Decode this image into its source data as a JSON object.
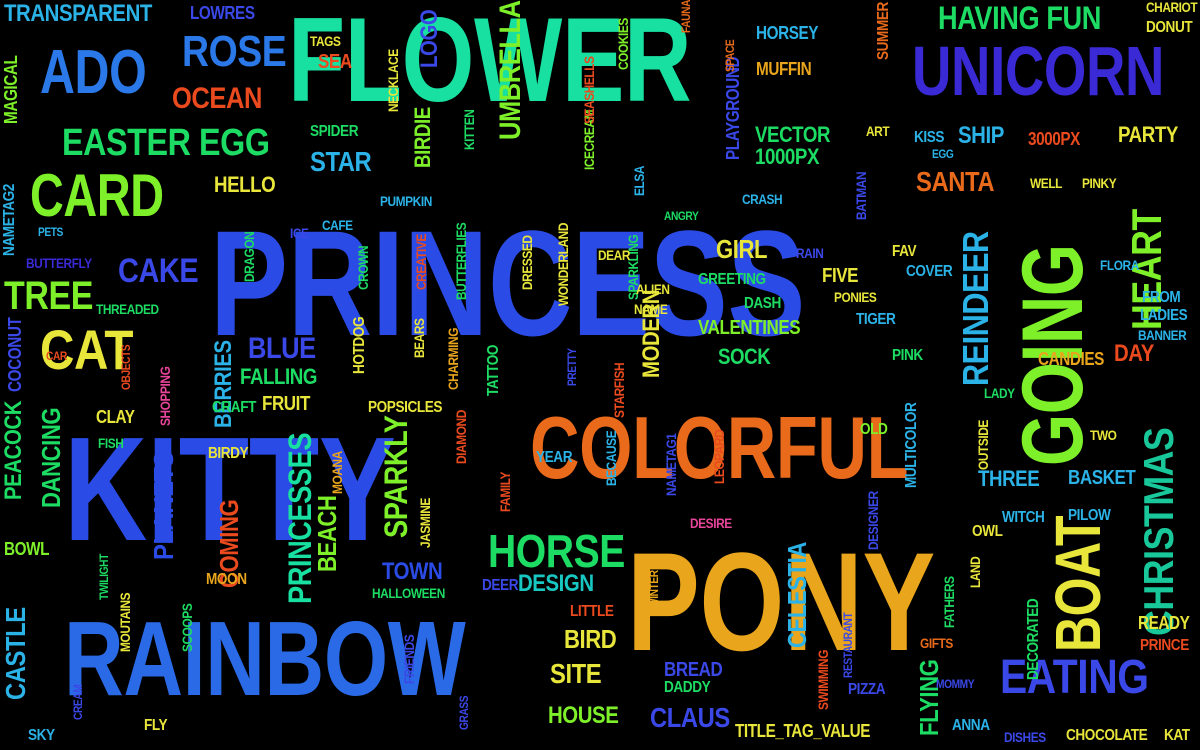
{
  "palette": {
    "blue": "#1f3fdd",
    "green": "#1ddc63",
    "aqua": "#18e0a0",
    "lime": "#7ef02a",
    "yellow": "#e8e63a",
    "orange": "#e8901a",
    "red": "#ea4a1e",
    "cyan": "#2bb3e8",
    "purple": "#4a2bd0",
    "pink": "#e8449a",
    "royal": "#3b48e8",
    "teal": "#18c7c2",
    "amber": "#e9a51c"
  },
  "words": [
    {
      "text": "FLOWER",
      "color": "#18e0a0"
    },
    {
      "text": "PRINCESS",
      "color": "#2a4be6"
    },
    {
      "text": "KITTY",
      "color": "#2a4be6"
    },
    {
      "text": "PONY",
      "color": "#e9a51c"
    },
    {
      "text": "RAINBOW",
      "color": "#2a6ae6"
    },
    {
      "text": "COLORFUL",
      "color": "#e86a1a"
    },
    {
      "text": "GOING",
      "color": "#7ef02a"
    },
    {
      "text": "UNICORN",
      "color": "#3a2ad6"
    },
    {
      "text": "BOAT",
      "color": "#e8e63a"
    },
    {
      "text": "CARD",
      "color": "#7ef02a"
    },
    {
      "text": "ADO",
      "color": "#2b79e8"
    },
    {
      "text": "CAT",
      "color": "#e8e63a"
    },
    {
      "text": "ROSE",
      "color": "#2b79e8"
    },
    {
      "text": "HORSE",
      "color": "#1ddc63"
    },
    {
      "text": "CHRISTMAS",
      "color": "#18c79a"
    },
    {
      "text": "HEART",
      "color": "#7ef02a"
    },
    {
      "text": "EATING",
      "color": "#3b48e8"
    },
    {
      "text": "REINDEER",
      "color": "#2bb3e8"
    },
    {
      "text": "EASTER EGG",
      "color": "#1ddc63"
    },
    {
      "text": "TREE",
      "color": "#7ef02a"
    },
    {
      "text": "CAKE",
      "color": "#3b48e8"
    },
    {
      "text": "OCEAN",
      "color": "#ea4a1e"
    },
    {
      "text": "HAVING FUN",
      "color": "#1ddc63"
    },
    {
      "text": "UMBRELLA",
      "color": "#7ef02a"
    },
    {
      "text": "TRANSPARENT",
      "color": "#2bb3e8"
    },
    {
      "text": "LOWRES",
      "color": "#3b48e8"
    },
    {
      "text": "MAGICAL",
      "color": "#7ef02a"
    },
    {
      "text": "NAMETAG2",
      "color": "#2bb3e8"
    },
    {
      "text": "BIRDIE",
      "color": "#7ef02a"
    },
    {
      "text": "LOGO",
      "color": "#3b48e8"
    },
    {
      "text": "SANTA",
      "color": "#e86a1a"
    },
    {
      "text": "PARTY",
      "color": "#e8e63a"
    },
    {
      "text": "SHIP",
      "color": "#2bb3e8"
    },
    {
      "text": "STAR",
      "color": "#2bb3e8"
    },
    {
      "text": "HELLO",
      "color": "#e8e63a"
    },
    {
      "text": "VECTOR",
      "color": "#1ddc63"
    },
    {
      "text": "1000PX",
      "color": "#1ddc63"
    },
    {
      "text": "3000PX",
      "color": "#ea4a1e"
    },
    {
      "text": "MUFFIN",
      "color": "#e9a51c"
    },
    {
      "text": "HORSEY",
      "color": "#2bb3e8"
    },
    {
      "text": "GIRL",
      "color": "#e8e63a"
    },
    {
      "text": "VALENTINES",
      "color": "#7ef02a"
    },
    {
      "text": "BLUE",
      "color": "#3b48e8"
    },
    {
      "text": "FALLING",
      "color": "#1ddc63"
    },
    {
      "text": "FRUIT",
      "color": "#e8e63a"
    },
    {
      "text": "BERRIES",
      "color": "#2bb3e8"
    },
    {
      "text": "CASTLE",
      "color": "#2bb3e8"
    },
    {
      "text": "PEACOCK",
      "color": "#1ddc63"
    },
    {
      "text": "DANCING",
      "color": "#1ddc63"
    },
    {
      "text": "COCONUT",
      "color": "#3b48e8"
    },
    {
      "text": "PRINCESSES",
      "color": "#18e0a0"
    },
    {
      "text": "BEACH",
      "color": "#7ef02a"
    },
    {
      "text": "SPARKLY",
      "color": "#7ef02a"
    },
    {
      "text": "PLANETS",
      "color": "#2a4be6"
    },
    {
      "text": "COMING",
      "color": "#ea4a1e"
    },
    {
      "text": "TOWN",
      "color": "#2a4be6"
    },
    {
      "text": "DESIGN",
      "color": "#18c7c2"
    },
    {
      "text": "SITE",
      "color": "#e8e63a"
    },
    {
      "text": "HOUSE",
      "color": "#7ef02a"
    },
    {
      "text": "BIRD",
      "color": "#e8e63a"
    },
    {
      "text": "CLAUS",
      "color": "#3b48e8"
    },
    {
      "text": "BREAD",
      "color": "#3b48e8"
    },
    {
      "text": "CELESTIA",
      "color": "#2bb3e8"
    },
    {
      "text": "FLYING",
      "color": "#1ddc63"
    },
    {
      "text": "THREE",
      "color": "#2bb3e8"
    },
    {
      "text": "BASKET",
      "color": "#2bb3e8"
    },
    {
      "text": "MODERN",
      "color": "#e8e63a"
    },
    {
      "text": "CANDIES",
      "color": "#e9a51c"
    },
    {
      "text": "DAY",
      "color": "#ea4a1e"
    },
    {
      "text": "YEAR",
      "color": "#2bb3e8"
    },
    {
      "text": "SOCK",
      "color": "#1ddc63"
    },
    {
      "text": "FIVE",
      "color": "#e8e63a"
    },
    {
      "text": "TIGER",
      "color": "#2bb3e8"
    },
    {
      "text": "ICECREAM",
      "color": "#7ef02a"
    },
    {
      "text": "PLAYGROUND",
      "color": "#3b48e8"
    },
    {
      "text": "BOWL",
      "color": "#7ef02a"
    },
    {
      "text": "SHOPPING",
      "color": "#e8449a"
    },
    {
      "text": "HOTDOG",
      "color": "#e8e63a"
    },
    {
      "text": "POPSICLES",
      "color": "#e8e63a"
    },
    {
      "text": "CRAFT",
      "color": "#1ddc63"
    },
    {
      "text": "CLAY",
      "color": "#e8e63a"
    },
    {
      "text": "FISH",
      "color": "#1ddc63"
    },
    {
      "text": "CROWN",
      "color": "#1ddc63"
    },
    {
      "text": "DRAGON",
      "color": "#1ddc63"
    },
    {
      "text": "THREADED",
      "color": "#1ddc63"
    },
    {
      "text": "BUTTERFLY",
      "color": "#3a2ad6"
    },
    {
      "text": "PETS",
      "color": "#2bb3e8"
    },
    {
      "text": "ICE",
      "color": "#3b48e8"
    },
    {
      "text": "CAFE",
      "color": "#2bb3e8"
    },
    {
      "text": "PUMPKIN",
      "color": "#2bb3e8"
    },
    {
      "text": "CREATIVE",
      "color": "#ea4a1e"
    },
    {
      "text": "BUTTERFLIES",
      "color": "#1ddc63"
    },
    {
      "text": "DRESSED",
      "color": "#e8e63a"
    },
    {
      "text": "WONDERLAND",
      "color": "#e8e63a"
    },
    {
      "text": "SPARKLING",
      "color": "#1ddc63"
    },
    {
      "text": "ELSA",
      "color": "#2bb3e8"
    },
    {
      "text": "ANGRY",
      "color": "#1ddc63"
    },
    {
      "text": "CRASH",
      "color": "#2bb3e8"
    },
    {
      "text": "BATMAN",
      "color": "#3b48e8"
    },
    {
      "text": "RAIN",
      "color": "#3b48e8"
    },
    {
      "text": "FAV",
      "color": "#e8e63a"
    },
    {
      "text": "COVER",
      "color": "#2bb3e8"
    },
    {
      "text": "PONIES",
      "color": "#e8e63a"
    },
    {
      "text": "GREETING",
      "color": "#1ddc63"
    },
    {
      "text": "DASH",
      "color": "#1ddc63"
    },
    {
      "text": "ALIEN",
      "color": "#e8e63a"
    },
    {
      "text": "NAME",
      "color": "#e8e63a"
    },
    {
      "text": "DEAR",
      "color": "#e8e63a"
    },
    {
      "text": "PINK",
      "color": "#1ddc63"
    },
    {
      "text": "LADY",
      "color": "#1ddc63"
    },
    {
      "text": "OLD",
      "color": "#7ef02a"
    },
    {
      "text": "MULTICOLOR",
      "color": "#2bb3e8"
    },
    {
      "text": "OUTSIDE",
      "color": "#e8e63a"
    },
    {
      "text": "DESIGNER",
      "color": "#3b48e8"
    },
    {
      "text": "OWL",
      "color": "#e8e63a"
    },
    {
      "text": "WITCH",
      "color": "#2bb3e8"
    },
    {
      "text": "PILOW",
      "color": "#2bb3e8"
    },
    {
      "text": "TWO",
      "color": "#e8e63a"
    },
    {
      "text": "FROM",
      "color": "#2bb3e8"
    },
    {
      "text": "LADIES",
      "color": "#2bb3e8"
    },
    {
      "text": "BANNER",
      "color": "#2bb3e8"
    },
    {
      "text": "FLORA",
      "color": "#2bb3e8"
    },
    {
      "text": "WELL",
      "color": "#e8e63a"
    },
    {
      "text": "PINKY",
      "color": "#e8e63a"
    },
    {
      "text": "CHARIOT",
      "color": "#e8e63a"
    },
    {
      "text": "DONUT",
      "color": "#e8e63a"
    },
    {
      "text": "KISS",
      "color": "#2bb3e8"
    },
    {
      "text": "EGG",
      "color": "#2bb3e8"
    },
    {
      "text": "ART",
      "color": "#e8e63a"
    },
    {
      "text": "SUMMER",
      "color": "#e86a1a"
    },
    {
      "text": "SPACE",
      "color": "#e86a1a"
    },
    {
      "text": "FAUNA",
      "color": "#e86a1a"
    },
    {
      "text": "COOKIES",
      "color": "#7ef02a"
    },
    {
      "text": "SEASHELLS",
      "color": "#ea4a1e"
    },
    {
      "text": "TAGS",
      "color": "#e8e63a"
    },
    {
      "text": "SEA",
      "color": "#ea4a1e"
    },
    {
      "text": "NECKLACE",
      "color": "#e8e63a"
    },
    {
      "text": "SPIDER",
      "color": "#1ddc63"
    },
    {
      "text": "KITTEN",
      "color": "#1ddc63"
    },
    {
      "text": "BEARS",
      "color": "#e8e63a"
    },
    {
      "text": "CHARMING",
      "color": "#e9a51c"
    },
    {
      "text": "TATTOO",
      "color": "#1ddc63"
    },
    {
      "text": "PRETTY",
      "color": "#3b48e8"
    },
    {
      "text": "STARFISH",
      "color": "#ea4a1e"
    },
    {
      "text": "DIAMOND",
      "color": "#ea4a1e"
    },
    {
      "text": "BECAUSE",
      "color": "#2bb3e8"
    },
    {
      "text": "NAMETAG1",
      "color": "#3b48e8"
    },
    {
      "text": "LEOPARD",
      "color": "#ea4a1e"
    },
    {
      "text": "FAMILY",
      "color": "#ea4a1e"
    },
    {
      "text": "DESIRE",
      "color": "#e8449a"
    },
    {
      "text": "DEER",
      "color": "#3b48e8"
    },
    {
      "text": "HALLOWEEN",
      "color": "#1ddc63"
    },
    {
      "text": "JASMINE",
      "color": "#e8e63a"
    },
    {
      "text": "MOANA",
      "color": "#e9a51c"
    },
    {
      "text": "BIRDY",
      "color": "#e8e63a"
    },
    {
      "text": "MOON",
      "color": "#e9a51c"
    },
    {
      "text": "TWILIGHT",
      "color": "#1ddc63"
    },
    {
      "text": "MOUTAINS",
      "color": "#e8e63a"
    },
    {
      "text": "SCOOPS",
      "color": "#1ddc63"
    },
    {
      "text": "FRIENDS",
      "color": "#3b48e8"
    },
    {
      "text": "GRASS",
      "color": "#3b48e8"
    },
    {
      "text": "CREAM",
      "color": "#3b48e8"
    },
    {
      "text": "SKY",
      "color": "#2bb3e8"
    },
    {
      "text": "FLY",
      "color": "#e8e63a"
    },
    {
      "text": "LITTLE",
      "color": "#ea4a1e"
    },
    {
      "text": "DADDY",
      "color": "#1ddc63"
    },
    {
      "text": "TITLE_TAG_VALUE",
      "color": "#e8e63a"
    },
    {
      "text": "WINTER",
      "color": "#e9a51c"
    },
    {
      "text": "SWIMMING",
      "color": "#ea4a1e"
    },
    {
      "text": "RESTAURANT",
      "color": "#3b48e8"
    },
    {
      "text": "PIZZA",
      "color": "#3b48e8"
    },
    {
      "text": "FATHERS",
      "color": "#1ddc63"
    },
    {
      "text": "GIFTS",
      "color": "#e86a1a"
    },
    {
      "text": "MOMMY",
      "color": "#3b48e8"
    },
    {
      "text": "LAND",
      "color": "#e8e63a"
    },
    {
      "text": "DECORATED",
      "color": "#1ddc63"
    },
    {
      "text": "ANNA",
      "color": "#2bb3e8"
    },
    {
      "text": "DISHES",
      "color": "#3b48e8"
    },
    {
      "text": "READY",
      "color": "#e8e63a"
    },
    {
      "text": "PRINCE",
      "color": "#ea4a1e"
    },
    {
      "text": "CHOCOLATE",
      "color": "#e8e63a"
    },
    {
      "text": "KAT",
      "color": "#e8e63a"
    },
    {
      "text": "CAR",
      "color": "#ea4a1e"
    },
    {
      "text": "OBJECTS",
      "color": "#ea4a1e"
    }
  ]
}
